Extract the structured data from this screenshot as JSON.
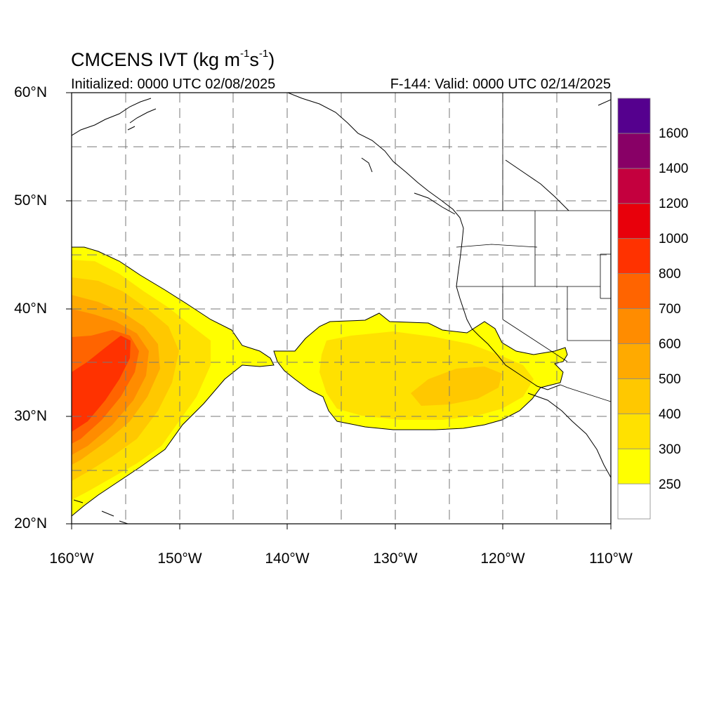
{
  "title": {
    "main": "CMCENS IVT (kg m",
    "sup1": "-1",
    "mid": "s",
    "sup2": "-1",
    "end": ")"
  },
  "initialized": "Initialized: 0000 UTC 02/08/2025",
  "valid": "F-144: Valid: 0000 UTC 02/14/2025",
  "lat_labels": [
    "60°N",
    "50°N",
    "40°N",
    "30°N",
    "20°N"
  ],
  "lon_labels": [
    "160°W",
    "150°W",
    "140°W",
    "130°W",
    "120°W",
    "110°W"
  ],
  "colorbar": {
    "labels": [
      "1600",
      "1400",
      "1200",
      "1000",
      "800",
      "700",
      "600",
      "500",
      "400",
      "300",
      "250"
    ],
    "colors": [
      "#ffffff",
      "#ffff00",
      "#ffe100",
      "#ffc800",
      "#ffaa00",
      "#ff8c00",
      "#ff6400",
      "#ff3200",
      "#e8000b",
      "#c4003e",
      "#880066",
      "#55008e"
    ]
  },
  "colors": {
    "grid": "#777777",
    "coast": "#000000",
    "border": "#000000"
  }
}
